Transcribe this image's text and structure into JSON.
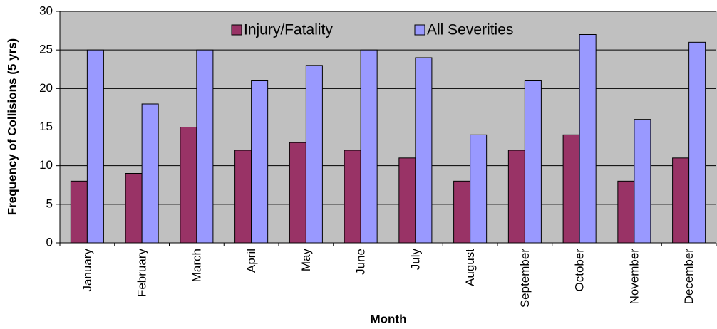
{
  "chart_data": {
    "type": "bar",
    "x_label": "Month",
    "y_label": "Frequency of Collisions (5 yrs)",
    "categories": [
      "January",
      "February",
      "March",
      "April",
      "May",
      "June",
      "July",
      "August",
      "September",
      "October",
      "November",
      "December"
    ],
    "series": [
      {
        "name": "Injury/Fatality",
        "color": "#993366",
        "values": [
          8,
          9,
          15,
          12,
          13,
          12,
          11,
          8,
          12,
          14,
          8,
          11
        ]
      },
      {
        "name": "All Severities",
        "color": "#9999ff",
        "values": [
          25,
          18,
          25,
          21,
          23,
          25,
          24,
          14,
          21,
          27,
          16,
          26
        ]
      }
    ],
    "ylim": [
      0,
      30
    ],
    "yticks": [
      0,
      5,
      10,
      15,
      20,
      25,
      30
    ],
    "grid": true,
    "legend": "top",
    "plot_background": "#c0c0c0"
  }
}
